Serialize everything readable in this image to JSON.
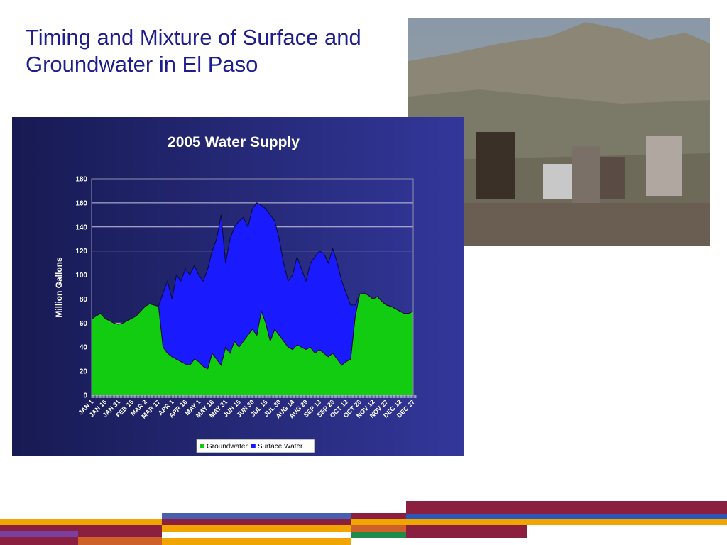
{
  "slide": {
    "title": "Timing and Mixture of Surface and Groundwater in El Paso"
  },
  "chart_data": {
    "type": "stacked_area",
    "title": "2005 Water Supply",
    "y_label": "Million Gallons",
    "categories": [
      "JAN 1",
      null,
      null,
      "JAN 16",
      null,
      null,
      "JAN 31",
      null,
      null,
      "FEB 15",
      null,
      null,
      "MAR 2",
      null,
      null,
      "MAR 17",
      null,
      null,
      "APR 1",
      null,
      null,
      "APR 16",
      null,
      null,
      "MAY 1",
      null,
      null,
      "MAY 16",
      null,
      null,
      "MAY 31",
      null,
      null,
      "JUN 15",
      null,
      null,
      "JUN 30",
      null,
      null,
      "JUL 15",
      null,
      null,
      "JUL 30",
      null,
      null,
      "AUG 14",
      null,
      null,
      "AUG 29",
      null,
      null,
      "SEP 13",
      null,
      null,
      "SEP 28",
      null,
      null,
      "OCT 13",
      null,
      null,
      "OCT 28",
      null,
      null,
      "NOV 12",
      null,
      null,
      "NOV 27",
      null,
      null,
      "DEC 12",
      null,
      null,
      "DEC 27"
    ],
    "series": [
      {
        "name": "Groundwater",
        "color": "#11cc11",
        "values": [
          63,
          66,
          68,
          64,
          62,
          60,
          59,
          60,
          62,
          64,
          66,
          70,
          74,
          76,
          75,
          74,
          40,
          35,
          32,
          30,
          28,
          26,
          25,
          30,
          28,
          24,
          22,
          35,
          30,
          25,
          40,
          35,
          45,
          40,
          45,
          50,
          55,
          50,
          70,
          60,
          45,
          55,
          50,
          45,
          40,
          38,
          42,
          40,
          38,
          40,
          35,
          38,
          35,
          32,
          35,
          30,
          25,
          28,
          30,
          65,
          84,
          85,
          83,
          80,
          82,
          78,
          75,
          74,
          72,
          70,
          68,
          68,
          70
        ]
      },
      {
        "name": "Surface Water",
        "color": "#1a1aff",
        "values": [
          0,
          0,
          0,
          0,
          0,
          0,
          0,
          0,
          0,
          0,
          0,
          0,
          0,
          0,
          0,
          0,
          45,
          60,
          48,
          70,
          67,
          79,
          75,
          78,
          72,
          71,
          83,
          85,
          100,
          125,
          70,
          95,
          95,
          105,
          103,
          90,
          100,
          110,
          88,
          95,
          105,
          90,
          80,
          65,
          55,
          62,
          73,
          65,
          57,
          70,
          80,
          82,
          83,
          78,
          87,
          80,
          70,
          57,
          45,
          10,
          0,
          0,
          0,
          0,
          0,
          0,
          0,
          0,
          0,
          0,
          0,
          0,
          0
        ]
      }
    ],
    "ylim": [
      0,
      180
    ],
    "yticks": [
      0,
      20,
      40,
      60,
      80,
      100,
      120,
      140,
      160,
      180
    ],
    "grid": true,
    "legend": "bottom"
  }
}
